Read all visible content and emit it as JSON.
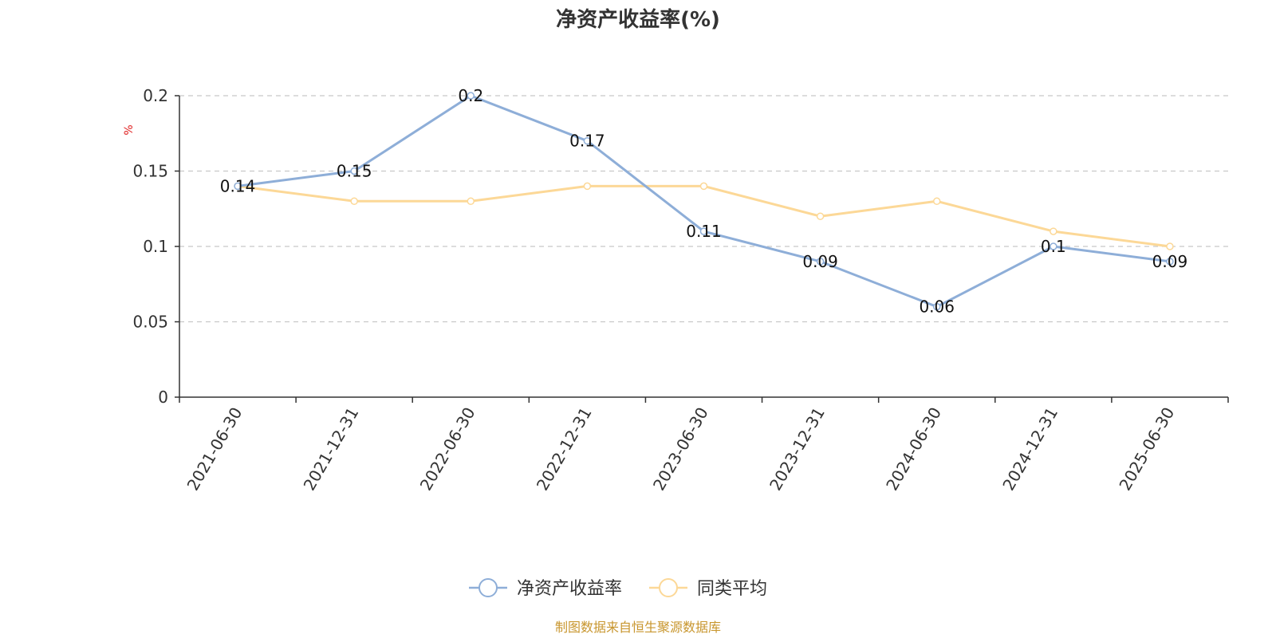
{
  "chart_data": {
    "type": "line",
    "title": "净资产收益率(%)",
    "ylabel": "%",
    "xlabel": "",
    "ylim": [
      0,
      0.2
    ],
    "yticks": [
      0,
      0.05,
      0.1,
      0.15,
      0.2
    ],
    "ytick_labels": [
      "0",
      "0.05",
      "0.1",
      "0.15",
      "0.2"
    ],
    "grid": true,
    "legend_position": "bottom-center",
    "categories": [
      "2021-06-30",
      "2021-12-31",
      "2022-06-30",
      "2022-12-31",
      "2023-06-30",
      "2023-12-31",
      "2024-06-30",
      "2024-12-31",
      "2025-06-30"
    ],
    "series": [
      {
        "name": "净资产收益率",
        "color": "#8eaed8",
        "values": [
          0.14,
          0.15,
          0.2,
          0.17,
          0.11,
          0.09,
          0.06,
          0.1,
          0.09
        ],
        "labels": [
          "0.14",
          "0.15",
          "0.2",
          "0.17",
          "0.11",
          "0.09",
          "0.06",
          "0.1",
          "0.09"
        ]
      },
      {
        "name": "同类平均",
        "color": "#fcd897",
        "values": [
          0.14,
          0.13,
          0.13,
          0.14,
          0.14,
          0.12,
          0.13,
          0.11,
          0.1
        ]
      }
    ],
    "source": "制图数据来自恒生聚源数据库",
    "source_color": "#c8962e"
  }
}
